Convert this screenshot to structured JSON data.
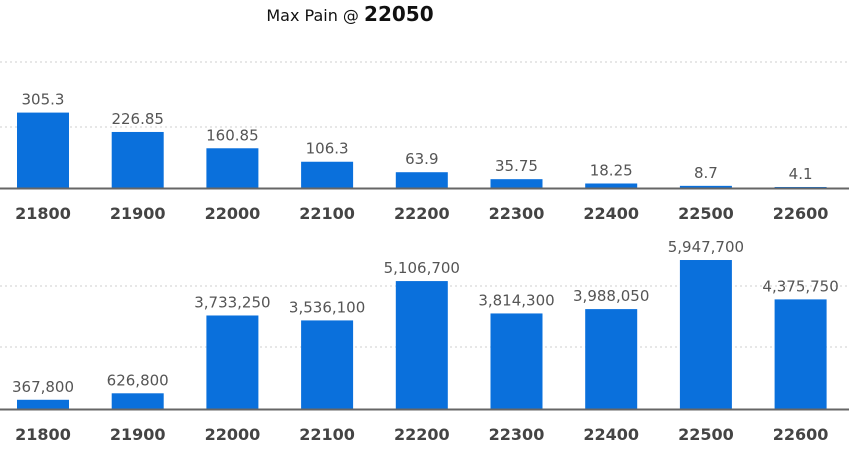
{
  "chart_data": [
    {
      "type": "bar",
      "title_prefix": "Max Pain @",
      "title_value": "22050",
      "categories": [
        "21800",
        "21900",
        "22000",
        "22100",
        "22200",
        "22300",
        "22400",
        "22500",
        "22600"
      ],
      "values": [
        305.3,
        226.85,
        160.85,
        106.3,
        63.9,
        35.75,
        18.25,
        8.7,
        4.1
      ],
      "value_labels": [
        "305.3",
        "226.85",
        "160.85",
        "106.3",
        "63.9",
        "35.75",
        "18.25",
        "8.7",
        "4.1"
      ],
      "ylim": [
        0,
        500
      ],
      "gridlines": [
        250,
        500
      ],
      "grid": true,
      "color": "#0a70dc"
    },
    {
      "type": "bar",
      "categories": [
        "21800",
        "21900",
        "22000",
        "22100",
        "22200",
        "22300",
        "22400",
        "22500",
        "22600"
      ],
      "values": [
        367800,
        626800,
        3733250,
        3536100,
        5106700,
        3814300,
        3988050,
        5947700,
        4375750
      ],
      "value_labels": [
        "367,800",
        "626,800",
        "3,733,250",
        "3,536,100",
        "5,106,700",
        "3,814,300",
        "3,988,050",
        "5,947,700",
        "4,375,750"
      ],
      "ylim": [
        0,
        8000000
      ],
      "gridlines": [
        4000000,
        8000000
      ],
      "grid": true,
      "color": "#0a70dc"
    }
  ]
}
